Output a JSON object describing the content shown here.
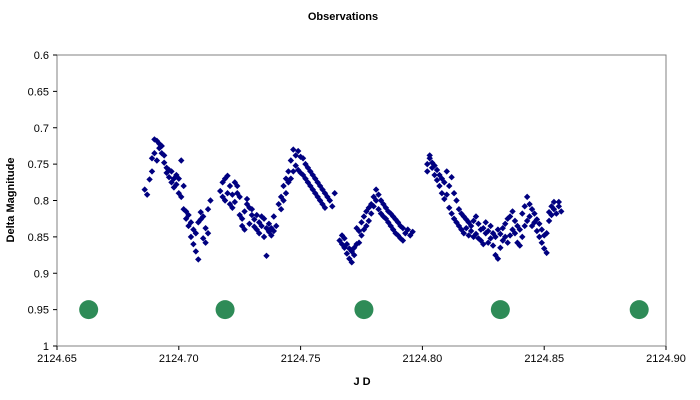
{
  "chart_data": {
    "type": "scatter",
    "title": "Observations",
    "xlabel": "J D",
    "ylabel": "Delta Magnitude",
    "xlim": [
      2124.65,
      2124.9
    ],
    "ylim": [
      0.6,
      1.0
    ],
    "y_inverted": true,
    "grid": false,
    "legend": "none",
    "x_ticks": [
      "2124.65",
      "2124.70",
      "2124.75",
      "2124.80",
      "2124.85",
      "2124.90"
    ],
    "x_tick_values": [
      2124.65,
      2124.7,
      2124.75,
      2124.8,
      2124.85,
      2124.9
    ],
    "y_ticks": [
      "0.6",
      "0.65",
      "0.7",
      "0.75",
      "0.8",
      "0.85",
      "0.9",
      "0.95",
      "1"
    ],
    "y_tick_values": [
      0.6,
      0.65,
      0.7,
      0.75,
      0.8,
      0.85,
      0.9,
      0.95,
      1.0
    ],
    "series": [
      {
        "marker": "diamond",
        "color": "#000080",
        "x": [
          2124.686,
          2124.687,
          2124.688,
          2124.689,
          2124.689,
          2124.69,
          2124.69,
          2124.691,
          2124.691,
          2124.692,
          2124.692,
          2124.693,
          2124.693,
          2124.694,
          2124.694,
          2124.695,
          2124.695,
          2124.696,
          2124.696,
          2124.697,
          2124.697,
          2124.698,
          2124.698,
          2124.699,
          2124.699,
          2124.7,
          2124.7,
          2124.701,
          2124.701,
          2124.702,
          2124.702,
          2124.703,
          2124.703,
          2124.704,
          2124.704,
          2124.705,
          2124.705,
          2124.706,
          2124.706,
          2124.707,
          2124.707,
          2124.708,
          2124.708,
          2124.709,
          2124.709,
          2124.71,
          2124.71,
          2124.711,
          2124.711,
          2124.712,
          2124.712,
          2124.713,
          2124.717,
          2124.718,
          2124.718,
          2124.719,
          2124.719,
          2124.72,
          2124.72,
          2124.721,
          2124.721,
          2124.722,
          2124.722,
          2124.723,
          2124.723,
          2124.724,
          2124.724,
          2124.725,
          2124.725,
          2124.726,
          2124.726,
          2124.727,
          2124.727,
          2124.728,
          2124.728,
          2124.729,
          2124.729,
          2124.73,
          2124.73,
          2124.731,
          2124.731,
          2124.732,
          2124.732,
          2124.733,
          2124.733,
          2124.734,
          2124.734,
          2124.735,
          2124.735,
          2124.736,
          2124.736,
          2124.737,
          2124.737,
          2124.738,
          2124.738,
          2124.739,
          2124.739,
          2124.74,
          2124.741,
          2124.742,
          2124.742,
          2124.743,
          2124.743,
          2124.744,
          2124.744,
          2124.745,
          2124.745,
          2124.746,
          2124.746,
          2124.747,
          2124.747,
          2124.748,
          2124.748,
          2124.749,
          2124.749,
          2124.75,
          2124.75,
          2124.751,
          2124.751,
          2124.752,
          2124.752,
          2124.753,
          2124.753,
          2124.754,
          2124.754,
          2124.755,
          2124.755,
          2124.756,
          2124.756,
          2124.757,
          2124.757,
          2124.758,
          2124.758,
          2124.759,
          2124.759,
          2124.76,
          2124.76,
          2124.761,
          2124.762,
          2124.763,
          2124.764,
          2124.766,
          2124.767,
          2124.767,
          2124.768,
          2124.768,
          2124.769,
          2124.769,
          2124.77,
          2124.77,
          2124.771,
          2124.771,
          2124.772,
          2124.772,
          2124.773,
          2124.773,
          2124.774,
          2124.774,
          2124.775,
          2124.775,
          2124.776,
          2124.776,
          2124.777,
          2124.777,
          2124.778,
          2124.778,
          2124.779,
          2124.779,
          2124.78,
          2124.78,
          2124.781,
          2124.781,
          2124.782,
          2124.782,
          2124.783,
          2124.783,
          2124.784,
          2124.784,
          2124.785,
          2124.785,
          2124.786,
          2124.786,
          2124.787,
          2124.787,
          2124.788,
          2124.788,
          2124.789,
          2124.789,
          2124.79,
          2124.79,
          2124.791,
          2124.791,
          2124.792,
          2124.792,
          2124.793,
          2124.794,
          2124.795,
          2124.796,
          2124.802,
          2124.802,
          2124.803,
          2124.803,
          2124.804,
          2124.804,
          2124.805,
          2124.805,
          2124.806,
          2124.806,
          2124.807,
          2124.807,
          2124.808,
          2124.808,
          2124.809,
          2124.809,
          2124.81,
          2124.81,
          2124.811,
          2124.811,
          2124.812,
          2124.812,
          2124.813,
          2124.813,
          2124.814,
          2124.814,
          2124.815,
          2124.815,
          2124.816,
          2124.816,
          2124.817,
          2124.817,
          2124.818,
          2124.818,
          2124.819,
          2124.819,
          2124.82,
          2124.82,
          2124.821,
          2124.821,
          2124.822,
          2124.822,
          2124.823,
          2124.823,
          2124.824,
          2124.824,
          2124.825,
          2124.825,
          2124.826,
          2124.826,
          2124.827,
          2124.827,
          2124.828,
          2124.828,
          2124.829,
          2124.829,
          2124.83,
          2124.83,
          2124.831,
          2124.831,
          2124.832,
          2124.832,
          2124.833,
          2124.833,
          2124.834,
          2124.834,
          2124.835,
          2124.835,
          2124.836,
          2124.836,
          2124.837,
          2124.837,
          2124.838,
          2124.838,
          2124.839,
          2124.839,
          2124.84,
          2124.84,
          2124.841,
          2124.841,
          2124.842,
          2124.842,
          2124.843,
          2124.843,
          2124.844,
          2124.844,
          2124.845,
          2124.845,
          2124.846,
          2124.846,
          2124.847,
          2124.847,
          2124.848,
          2124.848,
          2124.849,
          2124.849,
          2124.85,
          2124.85,
          2124.851,
          2124.851,
          2124.852,
          2124.852,
          2124.853,
          2124.853,
          2124.854,
          2124.854,
          2124.855,
          2124.856,
          2124.856,
          2124.857
        ],
        "y": [
          0.785,
          0.792,
          0.771,
          0.76,
          0.742,
          0.735,
          0.716,
          0.745,
          0.718,
          0.728,
          0.722,
          0.735,
          0.725,
          0.748,
          0.738,
          0.762,
          0.755,
          0.768,
          0.758,
          0.775,
          0.76,
          0.782,
          0.77,
          0.778,
          0.765,
          0.79,
          0.77,
          0.795,
          0.745,
          0.812,
          0.78,
          0.825,
          0.815,
          0.835,
          0.82,
          0.85,
          0.83,
          0.86,
          0.84,
          0.87,
          0.845,
          0.881,
          0.83,
          0.826,
          0.816,
          0.852,
          0.822,
          0.858,
          0.838,
          0.812,
          0.845,
          0.8,
          0.787,
          0.795,
          0.775,
          0.8,
          0.77,
          0.79,
          0.766,
          0.805,
          0.78,
          0.81,
          0.792,
          0.802,
          0.775,
          0.79,
          0.78,
          0.82,
          0.795,
          0.825,
          0.835,
          0.84,
          0.815,
          0.805,
          0.798,
          0.832,
          0.81,
          0.82,
          0.812,
          0.836,
          0.826,
          0.84,
          0.82,
          0.845,
          0.83,
          0.822,
          0.835,
          0.85,
          0.825,
          0.838,
          0.876,
          0.843,
          0.832,
          0.848,
          0.838,
          0.822,
          0.842,
          0.835,
          0.805,
          0.795,
          0.812,
          0.78,
          0.8,
          0.77,
          0.79,
          0.76,
          0.775,
          0.745,
          0.77,
          0.73,
          0.76,
          0.738,
          0.752,
          0.732,
          0.758,
          0.74,
          0.762,
          0.742,
          0.765,
          0.75,
          0.77,
          0.755,
          0.775,
          0.76,
          0.78,
          0.765,
          0.785,
          0.77,
          0.79,
          0.775,
          0.795,
          0.78,
          0.8,
          0.785,
          0.805,
          0.79,
          0.81,
          0.795,
          0.8,
          0.808,
          0.79,
          0.855,
          0.86,
          0.848,
          0.865,
          0.852,
          0.873,
          0.86,
          0.88,
          0.866,
          0.885,
          0.87,
          0.865,
          0.875,
          0.838,
          0.86,
          0.842,
          0.858,
          0.83,
          0.848,
          0.822,
          0.84,
          0.815,
          0.835,
          0.81,
          0.828,
          0.805,
          0.818,
          0.795,
          0.808,
          0.8,
          0.785,
          0.792,
          0.812,
          0.8,
          0.818,
          0.805,
          0.822,
          0.81,
          0.825,
          0.815,
          0.83,
          0.818,
          0.835,
          0.822,
          0.84,
          0.826,
          0.845,
          0.83,
          0.848,
          0.835,
          0.852,
          0.838,
          0.855,
          0.845,
          0.84,
          0.848,
          0.843,
          0.76,
          0.75,
          0.742,
          0.738,
          0.748,
          0.755,
          0.765,
          0.752,
          0.772,
          0.758,
          0.78,
          0.765,
          0.79,
          0.77,
          0.798,
          0.775,
          0.792,
          0.76,
          0.81,
          0.78,
          0.818,
          0.768,
          0.825,
          0.79,
          0.83,
          0.8,
          0.835,
          0.812,
          0.84,
          0.818,
          0.845,
          0.822,
          0.838,
          0.826,
          0.848,
          0.83,
          0.842,
          0.835,
          0.85,
          0.828,
          0.846,
          0.822,
          0.852,
          0.832,
          0.855,
          0.84,
          0.86,
          0.838,
          0.845,
          0.83,
          0.858,
          0.842,
          0.852,
          0.835,
          0.862,
          0.845,
          0.875,
          0.85,
          0.88,
          0.84,
          0.865,
          0.846,
          0.855,
          0.838,
          0.85,
          0.832,
          0.858,
          0.825,
          0.848,
          0.822,
          0.84,
          0.815,
          0.845,
          0.828,
          0.858,
          0.835,
          0.862,
          0.84,
          0.85,
          0.818,
          0.835,
          0.808,
          0.828,
          0.795,
          0.822,
          0.805,
          0.835,
          0.812,
          0.83,
          0.818,
          0.842,
          0.826,
          0.85,
          0.832,
          0.858,
          0.84,
          0.866,
          0.848,
          0.872,
          0.845,
          0.828,
          0.816,
          0.82,
          0.808,
          0.812,
          0.802,
          0.818,
          0.808,
          0.802,
          0.815
        ]
      },
      {
        "marker": "circle",
        "color": "#2E8B57",
        "x": [
          2124.663,
          2124.719,
          2124.776,
          2124.832,
          2124.889
        ],
        "y": [
          0.95,
          0.95,
          0.95,
          0.95,
          0.95
        ]
      }
    ]
  }
}
